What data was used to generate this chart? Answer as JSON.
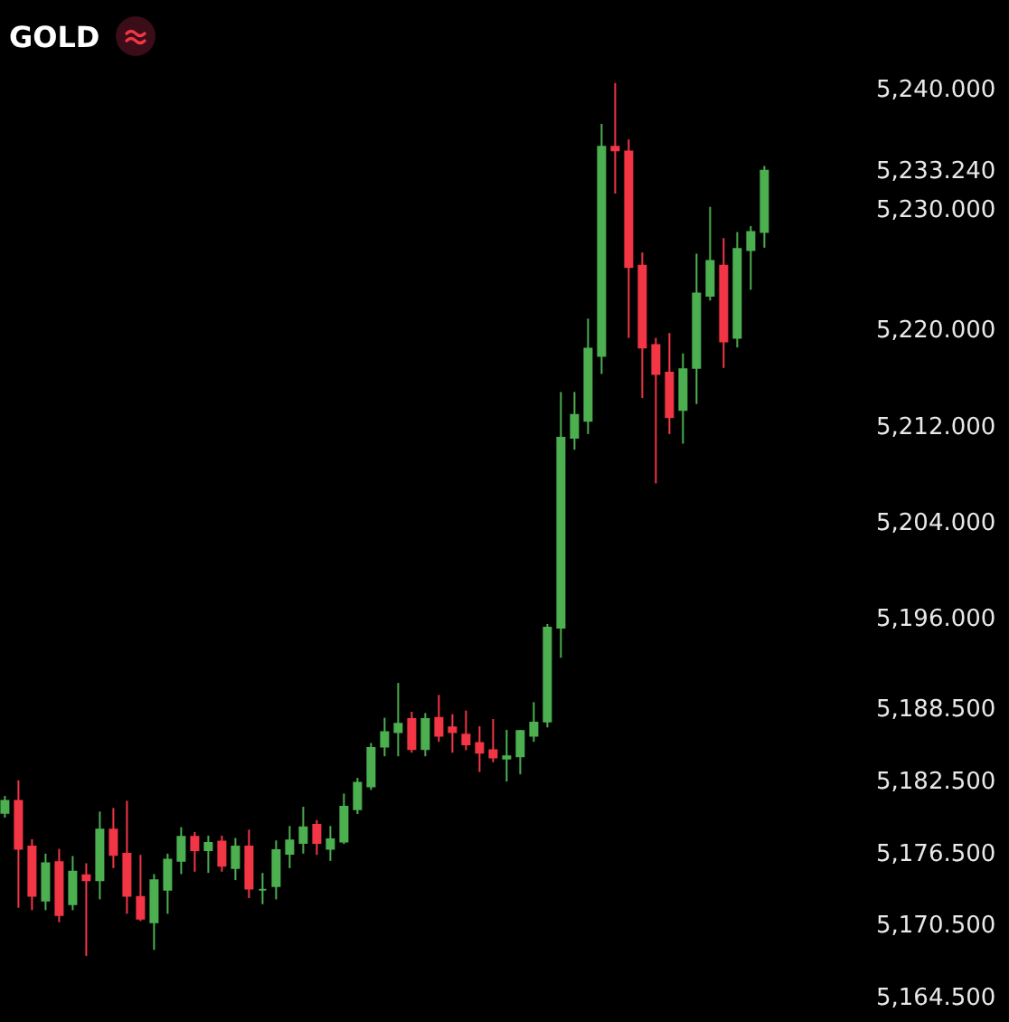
{
  "chart_data": {
    "type": "candlestick",
    "title": "GOLD",
    "categories": [
      null,
      null,
      null,
      null,
      null,
      null,
      null,
      null,
      null,
      null,
      null,
      null,
      null,
      null,
      null,
      null,
      null,
      null,
      null,
      null,
      null,
      null,
      null,
      null,
      null,
      null,
      null,
      null,
      null,
      null,
      null,
      null,
      null,
      null,
      null,
      null,
      null,
      null,
      null,
      null,
      null,
      null,
      null,
      null,
      null,
      null,
      null,
      null,
      null,
      null,
      null,
      null,
      null,
      null,
      null,
      null,
      null
    ],
    "ohlc": [
      [
        5179.8,
        5181.2,
        5179.4,
        5180.8
      ],
      [
        5180.8,
        5182.5,
        5171.9,
        5176.8
      ],
      [
        5177.0,
        5177.6,
        5171.7,
        5172.9
      ],
      [
        5172.5,
        5176.4,
        5171.7,
        5175.6
      ],
      [
        5175.7,
        5176.8,
        5170.7,
        5171.3
      ],
      [
        5172.2,
        5176.2,
        5171.7,
        5174.9
      ],
      [
        5174.6,
        5175.6,
        5167.9,
        5174.2
      ],
      [
        5174.2,
        5179.9,
        5172.6,
        5178.4
      ],
      [
        5178.4,
        5180.2,
        5175.2,
        5176.3
      ],
      [
        5176.4,
        5180.8,
        5171.4,
        5172.9
      ],
      [
        5172.8,
        5176.3,
        5170.8,
        5171.0
      ],
      [
        5170.7,
        5174.7,
        5168.4,
        5174.2
      ],
      [
        5173.4,
        5176.4,
        5171.4,
        5175.9
      ],
      [
        5175.8,
        5178.6,
        5174.7,
        5177.8
      ],
      [
        5177.8,
        5178.2,
        5174.9,
        5176.7
      ],
      [
        5176.7,
        5177.9,
        5174.8,
        5177.3
      ],
      [
        5177.4,
        5177.9,
        5174.9,
        5175.4
      ],
      [
        5175.2,
        5177.7,
        5174.2,
        5177.0
      ],
      [
        5177.0,
        5178.4,
        5172.7,
        5173.5
      ],
      [
        5173.4,
        5174.8,
        5172.2,
        5173.4
      ],
      [
        5173.7,
        5177.5,
        5172.6,
        5176.7
      ],
      [
        5176.4,
        5178.7,
        5175.2,
        5177.5
      ],
      [
        5177.3,
        5180.3,
        5176.4,
        5178.6
      ],
      [
        5178.8,
        5179.2,
        5176.3,
        5177.3
      ],
      [
        5176.8,
        5178.7,
        5175.8,
        5177.6
      ],
      [
        5177.4,
        5181.4,
        5177.2,
        5180.3
      ],
      [
        5180.1,
        5182.7,
        5179.7,
        5182.3
      ],
      [
        5182.0,
        5185.6,
        5181.7,
        5185.2
      ],
      [
        5185.3,
        5187.7,
        5184.5,
        5186.5
      ],
      [
        5186.5,
        5190.6,
        5184.5,
        5187.2
      ],
      [
        5187.6,
        5188.2,
        5184.8,
        5185.1
      ],
      [
        5185.1,
        5188.1,
        5184.5,
        5187.6
      ],
      [
        5187.7,
        5189.6,
        5185.7,
        5186.2
      ],
      [
        5186.9,
        5188.0,
        5184.8,
        5186.5
      ],
      [
        5186.3,
        5188.3,
        5185.0,
        5185.5
      ],
      [
        5185.6,
        5187.0,
        5183.2,
        5184.8
      ],
      [
        5185.0,
        5187.6,
        5184.0,
        5184.4
      ],
      [
        5184.3,
        5186.7,
        5182.4,
        5184.5
      ],
      [
        5184.5,
        5186.7,
        5183.0,
        5186.6
      ],
      [
        5186.2,
        5189.0,
        5185.7,
        5187.3
      ],
      [
        5187.4,
        5195.5,
        5186.9,
        5195.2
      ],
      [
        5195.2,
        5214.8,
        5192.7,
        5211.0
      ],
      [
        5211.0,
        5214.8,
        5210.0,
        5212.9
      ],
      [
        5212.4,
        5220.9,
        5211.3,
        5218.4
      ],
      [
        5217.8,
        5237.1,
        5216.3,
        5235.2
      ],
      [
        5235.2,
        5240.5,
        5231.3,
        5234.9
      ],
      [
        5234.8,
        5235.8,
        5219.3,
        5225.2
      ],
      [
        5225.3,
        5226.4,
        5214.3,
        5218.5
      ],
      [
        5218.7,
        5219.3,
        5207.2,
        5216.3
      ],
      [
        5216.4,
        5219.7,
        5211.3,
        5212.7
      ],
      [
        5213.3,
        5218.0,
        5210.5,
        5216.7
      ],
      [
        5216.8,
        5226.3,
        5213.8,
        5223.0
      ],
      [
        5222.8,
        5230.2,
        5222.4,
        5225.7
      ],
      [
        5225.3,
        5227.6,
        5216.8,
        5219.0
      ],
      [
        5219.3,
        5228.1,
        5218.5,
        5226.7
      ],
      [
        5226.6,
        5228.6,
        5223.3,
        5228.1
      ],
      [
        5228.1,
        5233.6,
        5226.8,
        5233.2
      ]
    ],
    "colors": [
      "#4caf50",
      "#f23645",
      "#f23645",
      "#4caf50",
      "#f23645",
      "#4caf50",
      "#f23645",
      "#4caf50",
      "#f23645",
      "#f23645",
      "#f23645",
      "#4caf50",
      "#4caf50",
      "#4caf50",
      "#f23645",
      "#4caf50",
      "#f23645",
      "#4caf50",
      "#f23645",
      "#4caf50",
      "#4caf50",
      "#4caf50",
      "#4caf50",
      "#f23645",
      "#4caf50",
      "#4caf50",
      "#4caf50",
      "#4caf50",
      "#4caf50",
      "#4caf50",
      "#f23645",
      "#4caf50",
      "#f23645",
      "#f23645",
      "#f23645",
      "#f23645",
      "#f23645",
      "#4caf50",
      "#4caf50",
      "#4caf50",
      "#4caf50",
      "#4caf50",
      "#4caf50",
      "#4caf50",
      "#4caf50",
      "#f23645",
      "#f23645",
      "#f23645",
      "#f23645",
      "#f23645",
      "#4caf50",
      "#4caf50",
      "#4caf50",
      "#f23645",
      "#4caf50",
      "#4caf50",
      "#4caf50"
    ],
    "ylim": [
      5162.4,
      5247.4
    ],
    "yticks": [
      {
        "value": 5240,
        "label": "5,240.000"
      },
      {
        "value": 5233.24,
        "label": "5,233.240"
      },
      {
        "value": 5230,
        "label": "5,230.000"
      },
      {
        "value": 5220,
        "label": "5,220.000"
      },
      {
        "value": 5212,
        "label": "5,212.000"
      },
      {
        "value": 5204,
        "label": "5,204.000"
      },
      {
        "value": 5196,
        "label": "5,196.000"
      },
      {
        "value": 5188.5,
        "label": "5,188.500"
      },
      {
        "value": 5182.5,
        "label": "5,182.500"
      },
      {
        "value": 5176.5,
        "label": "5,176.500"
      },
      {
        "value": 5170.5,
        "label": "5,170.500"
      },
      {
        "value": 5164.5,
        "label": "5,164.500"
      }
    ],
    "tick_labels": "y"
  }
}
